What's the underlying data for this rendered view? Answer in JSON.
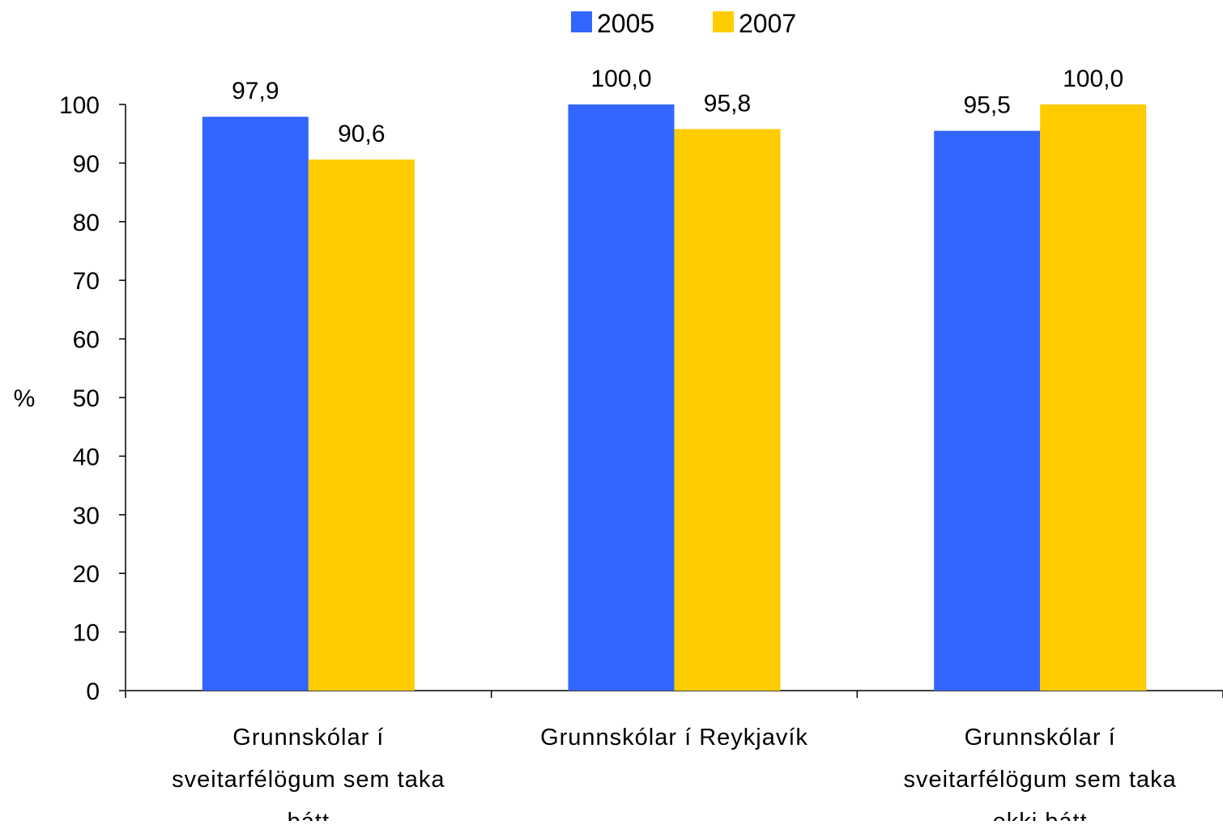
{
  "chart_data": {
    "type": "bar",
    "title": "",
    "xlabel": "",
    "ylabel": "%",
    "ylim": [
      0,
      100
    ],
    "yticks": [
      0,
      10,
      20,
      30,
      40,
      50,
      60,
      70,
      80,
      90,
      100
    ],
    "grid": false,
    "legend_position": "top-center",
    "categories": [
      [
        "Grunnskólar í",
        "sveitarfélögum sem taka",
        "þátt"
      ],
      [
        "Grunnskólar í Reykjavík"
      ],
      [
        "Grunnskólar í",
        "sveitarfélögum sem taka",
        "ekki þátt"
      ]
    ],
    "series": [
      {
        "name": "2005",
        "color": "#3366FF",
        "values": [
          97.9,
          100.0,
          95.5
        ],
        "labels": [
          "97,9",
          "100,0",
          "95,5"
        ]
      },
      {
        "name": "2007",
        "color": "#FFCC00",
        "values": [
          90.6,
          95.8,
          100.0
        ],
        "labels": [
          "90,6",
          "95,8",
          "100,0"
        ]
      }
    ]
  }
}
